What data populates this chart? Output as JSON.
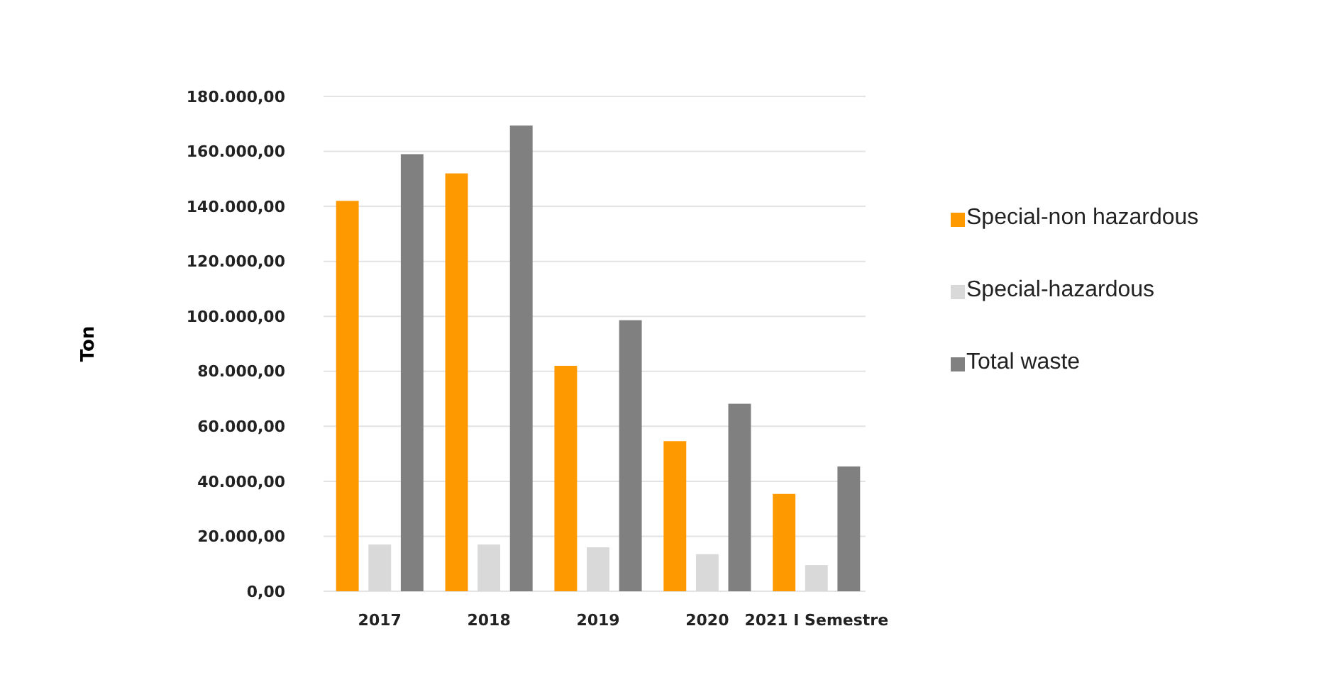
{
  "chart_data": {
    "type": "bar",
    "ylabel": "Ton",
    "categories": [
      "2017",
      "2018",
      "2019",
      "2020",
      "2021 I Semestre"
    ],
    "series": [
      {
        "name": "Special-non hazardous",
        "color": "#ff9900",
        "values": [
          142000,
          152000,
          82000,
          54600,
          35400
        ]
      },
      {
        "name": "Special-hazardous",
        "color": "#d9d9d9",
        "values": [
          17000,
          17000,
          16000,
          13500,
          9500
        ]
      },
      {
        "name": "Total waste",
        "color": "#808080",
        "values": [
          159000,
          169400,
          98600,
          68200,
          45400
        ]
      }
    ],
    "ylim": [
      0,
      180000
    ],
    "yticks": [
      {
        "value": 0,
        "label": "0,00"
      },
      {
        "value": 20000,
        "label": "20.000,00"
      },
      {
        "value": 40000,
        "label": "40.000,00"
      },
      {
        "value": 60000,
        "label": "60.000,00"
      },
      {
        "value": 80000,
        "label": "80.000,00"
      },
      {
        "value": 100000,
        "label": "100.000,00"
      },
      {
        "value": 120000,
        "label": "120.000,00"
      },
      {
        "value": 140000,
        "label": "140.000,00"
      },
      {
        "value": 160000,
        "label": "160.000,00"
      },
      {
        "value": 180000,
        "label": "180.000,00"
      }
    ],
    "grid": "y",
    "legend": "right"
  }
}
